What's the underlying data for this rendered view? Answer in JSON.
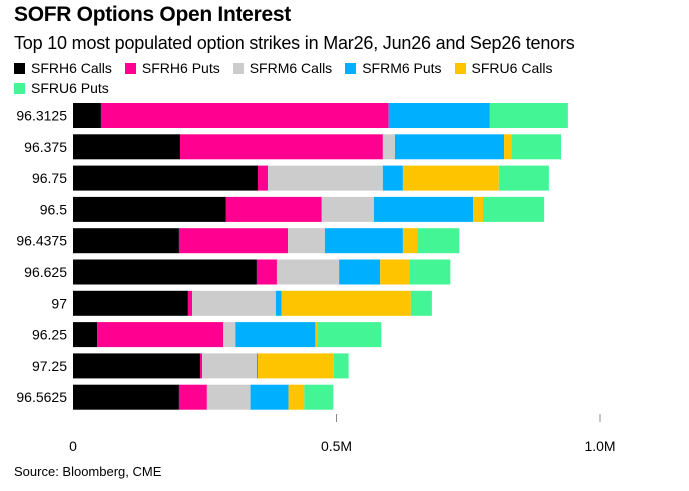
{
  "chart_data": {
    "type": "bar",
    "orientation": "horizontal",
    "stacked": true,
    "title": "SOFR Options Open Interest",
    "subtitle": "Top 10 most populated option strikes in Mar26, Jun26 and Sep26 tenors",
    "xlabel": "",
    "ylabel": "",
    "xlim": [
      0,
      1000000
    ],
    "x_ticks": [
      0,
      500000,
      1000000
    ],
    "x_tick_labels": [
      "0",
      "0.5M",
      "1.0M"
    ],
    "grid": false,
    "legend_position": "top-left",
    "categories": [
      "96.3125",
      "96.375",
      "96.75",
      "96.5",
      "96.4375",
      "96.625",
      "97",
      "96.25",
      "97.25",
      "96.5625"
    ],
    "series": [
      {
        "name": "SFRH6 Calls",
        "color": "#000000",
        "values": [
          53000,
          203000,
          351000,
          290000,
          201000,
          349000,
          218000,
          46000,
          241000,
          201000
        ]
      },
      {
        "name": "SFRH6 Puts",
        "color": "#ff0090",
        "values": [
          546000,
          385000,
          19000,
          182000,
          207000,
          38000,
          8000,
          239000,
          4000,
          53000
        ]
      },
      {
        "name": "SFRM6 Calls",
        "color": "#cccccc",
        "values": [
          0,
          23000,
          218000,
          99000,
          70000,
          118000,
          159000,
          23000,
          104000,
          83000
        ]
      },
      {
        "name": "SFRM6 Puts",
        "color": "#00b0ff",
        "values": [
          192000,
          207000,
          38000,
          188000,
          148000,
          78000,
          11000,
          152000,
          2000,
          72000
        ]
      },
      {
        "name": "SFRU6 Calls",
        "color": "#ffc400",
        "values": [
          0,
          15000,
          182000,
          19000,
          27000,
          55000,
          245000,
          4000,
          144000,
          30000
        ]
      },
      {
        "name": "SFRU6 Puts",
        "color": "#43f595",
        "values": [
          148000,
          93000,
          95000,
          116000,
          80000,
          78000,
          40000,
          121000,
          28000,
          55000
        ]
      }
    ],
    "source": "Source: Bloomberg, CME"
  }
}
